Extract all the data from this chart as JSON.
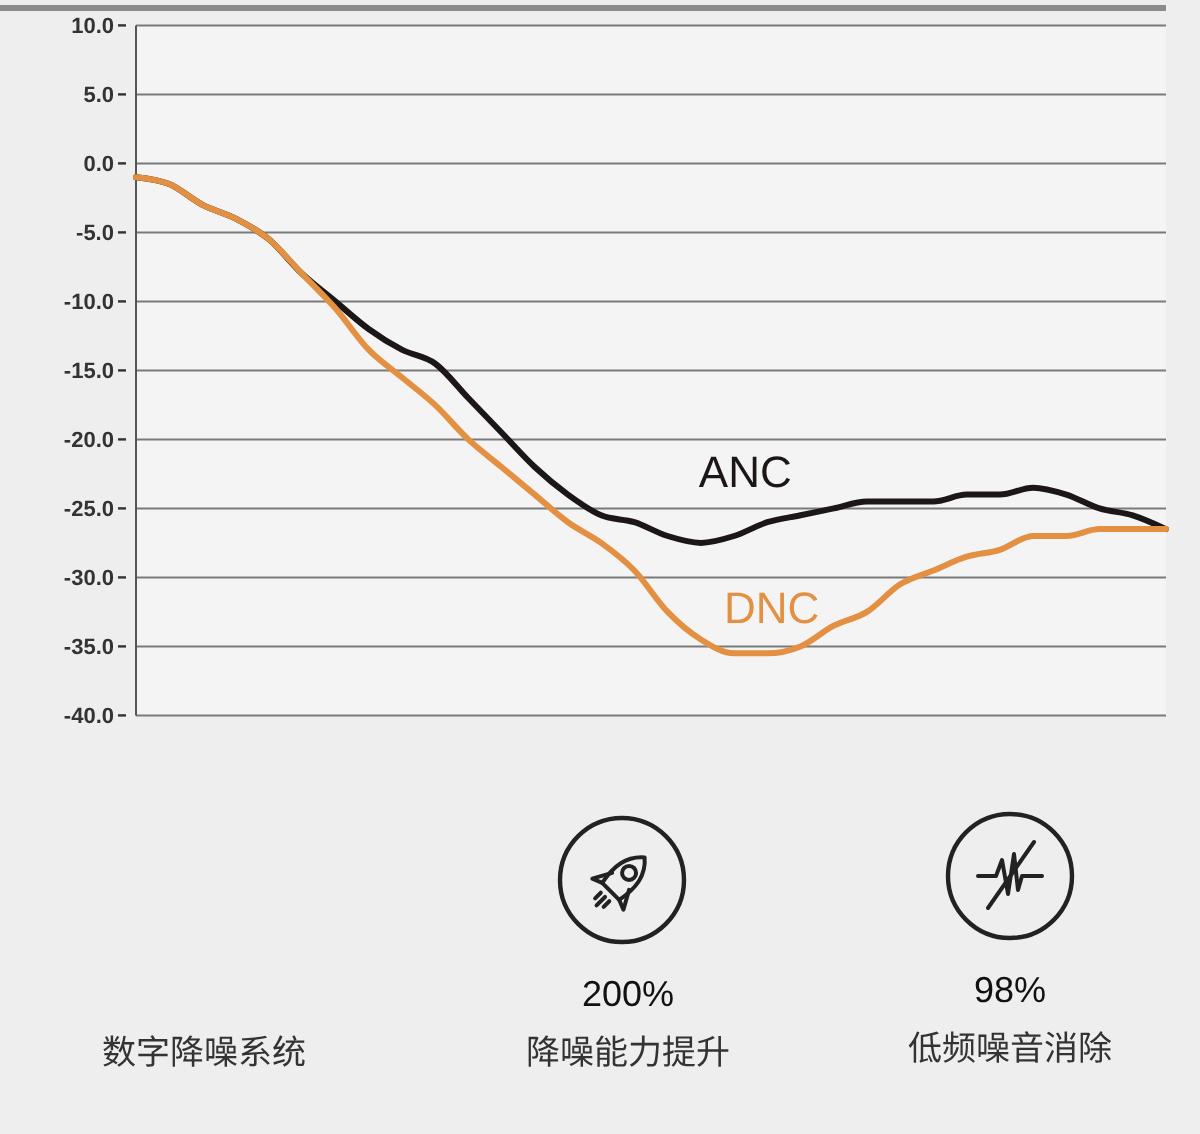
{
  "chart_data": {
    "type": "line",
    "categories": [
      null,
      null,
      null,
      null,
      null,
      null,
      null,
      null,
      null,
      null,
      null,
      null,
      null,
      null,
      null,
      null,
      null,
      null,
      null,
      null,
      null,
      null,
      null,
      null,
      null,
      null,
      null,
      null,
      null,
      null,
      null,
      null
    ],
    "series": [
      {
        "name": "ANC",
        "color": "#1c1716",
        "values": [
          -1,
          -1.5,
          -3,
          -4,
          -5.5,
          -8,
          -10,
          -12,
          -13.5,
          -14.5,
          -17,
          -19.5,
          -22,
          -24,
          -25.5,
          -26,
          -27,
          -27.5,
          -27,
          -26,
          -25.5,
          -25,
          -24.5,
          -24.5,
          -24.5,
          -24,
          -24,
          -23.5,
          -24,
          -25,
          -25.5,
          -26.5
        ]
      },
      {
        "name": "DNC",
        "color": "#e39042",
        "values": [
          -1,
          -1.5,
          -3,
          -4,
          -5.5,
          -8,
          -10.5,
          -13.5,
          -15.5,
          -17.5,
          -20,
          -22,
          -24,
          -26,
          -27.5,
          -29.5,
          -32.5,
          -34.5,
          -35.5,
          -35.5,
          -35,
          -33.5,
          -32.5,
          -30.5,
          -29.5,
          -28.5,
          -28,
          -27,
          -27,
          -26.5,
          -26.5,
          -26.5
        ]
      }
    ],
    "ylim": [
      -40,
      10
    ],
    "yticks": [
      {
        "value": 10,
        "label": "10.0"
      },
      {
        "value": 5,
        "label": "5.0"
      },
      {
        "value": 0,
        "label": "0.0"
      },
      {
        "value": -5,
        "label": "-5.0"
      },
      {
        "value": -10,
        "label": "-10.0"
      },
      {
        "value": -15,
        "label": "-15.0"
      },
      {
        "value": -20,
        "label": "-20.0"
      },
      {
        "value": -25,
        "label": "-25.0"
      },
      {
        "value": -30,
        "label": "-30.0"
      },
      {
        "value": -35,
        "label": "-35.0"
      },
      {
        "value": -40,
        "label": "-40.0"
      }
    ],
    "grid": "y",
    "tick_labels": "y",
    "annotations": [
      "数字降噪系统",
      "200%",
      "降噪能力提升",
      "98%",
      "低频噪音消除"
    ]
  }
}
